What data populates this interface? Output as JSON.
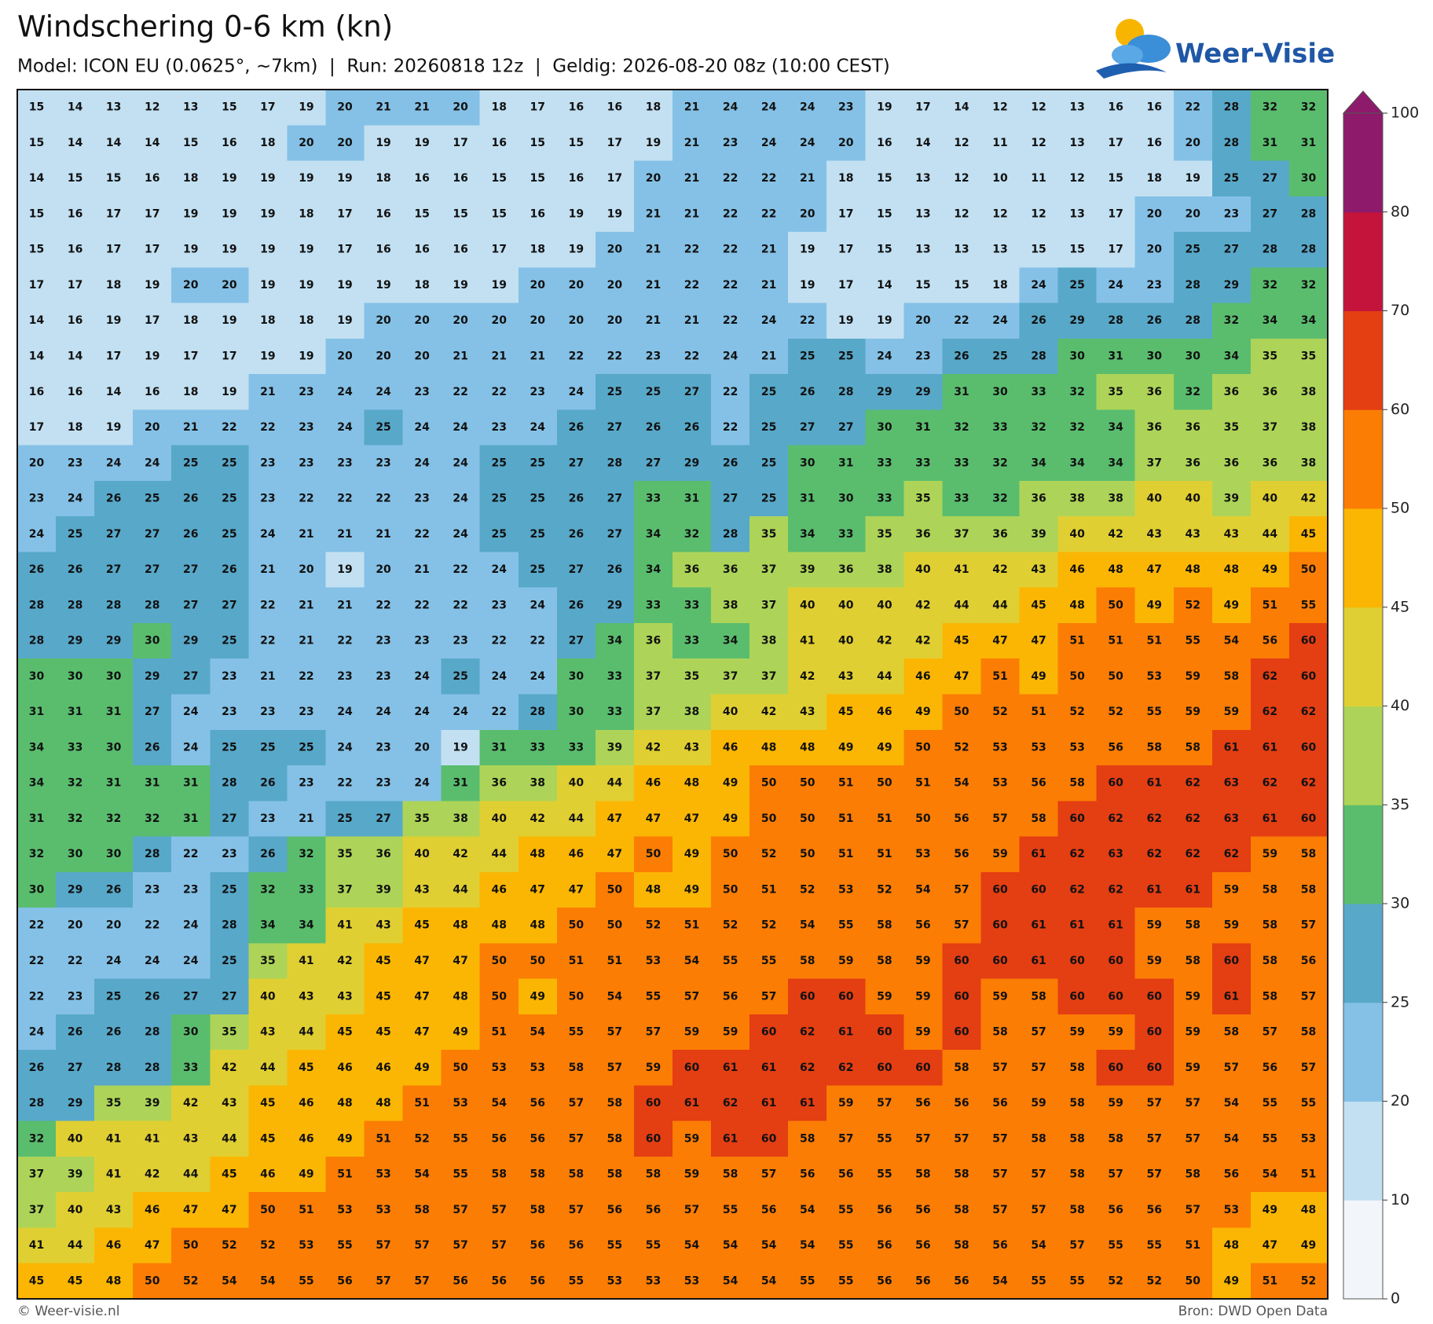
{
  "header": {
    "title": "Windschering 0-6 km (kn)",
    "subtitle": "Model: ICON EU (0.0625°, ~7km)  |  Run: 20260818 12z  |  Geldig: 2026-08-20 08z (10:00 CEST)"
  },
  "logo": {
    "text": "Weer-Visie"
  },
  "map": {
    "grid": [
      [
        15,
        14,
        13,
        12,
        13,
        15,
        17,
        19,
        20,
        21,
        21,
        20,
        18,
        17,
        16,
        16,
        18,
        21,
        24,
        24,
        24,
        23,
        19,
        17,
        14,
        12,
        12,
        13,
        16,
        16,
        22,
        28,
        32,
        32
      ],
      [
        15,
        14,
        14,
        14,
        15,
        16,
        18,
        20,
        20,
        19,
        19,
        17,
        16,
        15,
        15,
        17,
        19,
        21,
        23,
        24,
        24,
        20,
        16,
        14,
        12,
        11,
        12,
        13,
        17,
        16,
        20,
        28,
        31,
        31
      ],
      [
        14,
        15,
        15,
        16,
        18,
        19,
        19,
        19,
        19,
        18,
        16,
        16,
        15,
        15,
        16,
        17,
        20,
        21,
        22,
        22,
        21,
        18,
        15,
        13,
        12,
        10,
        11,
        12,
        15,
        18,
        19,
        25,
        27,
        30
      ],
      [
        15,
        16,
        17,
        17,
        19,
        19,
        19,
        18,
        17,
        16,
        15,
        15,
        15,
        16,
        19,
        19,
        21,
        21,
        22,
        22,
        20,
        17,
        15,
        13,
        12,
        12,
        12,
        13,
        17,
        20,
        20,
        23,
        27,
        28
      ],
      [
        15,
        16,
        17,
        17,
        19,
        19,
        19,
        19,
        17,
        16,
        16,
        16,
        17,
        18,
        19,
        20,
        21,
        22,
        22,
        21,
        19,
        17,
        15,
        13,
        13,
        13,
        15,
        15,
        17,
        20,
        25,
        27,
        28,
        28
      ],
      [
        17,
        17,
        18,
        19,
        20,
        20,
        19,
        19,
        19,
        19,
        18,
        19,
        19,
        20,
        20,
        20,
        21,
        22,
        22,
        21,
        19,
        17,
        14,
        15,
        15,
        18,
        24,
        25,
        24,
        23,
        28,
        29,
        32,
        32
      ],
      [
        14,
        16,
        19,
        17,
        18,
        19,
        18,
        18,
        19,
        20,
        20,
        20,
        20,
        20,
        20,
        20,
        21,
        21,
        22,
        24,
        22,
        19,
        19,
        20,
        22,
        24,
        26,
        29,
        28,
        26,
        28,
        32,
        34,
        34
      ],
      [
        14,
        14,
        17,
        19,
        17,
        17,
        19,
        19,
        20,
        20,
        20,
        21,
        21,
        21,
        22,
        22,
        23,
        22,
        24,
        21,
        25,
        25,
        24,
        23,
        26,
        25,
        28,
        30,
        31,
        30,
        30,
        34,
        35,
        35
      ],
      [
        16,
        16,
        14,
        16,
        18,
        19,
        21,
        23,
        24,
        24,
        23,
        22,
        22,
        23,
        24,
        25,
        25,
        27,
        22,
        25,
        26,
        28,
        29,
        29,
        31,
        30,
        33,
        32,
        35,
        36,
        32,
        36,
        36,
        38
      ],
      [
        17,
        18,
        19,
        20,
        21,
        22,
        22,
        23,
        24,
        25,
        24,
        24,
        23,
        24,
        26,
        27,
        26,
        26,
        22,
        25,
        27,
        27,
        30,
        31,
        32,
        33,
        32,
        32,
        34,
        36,
        36,
        35,
        37,
        38
      ],
      [
        20,
        23,
        24,
        24,
        25,
        25,
        23,
        23,
        23,
        23,
        24,
        24,
        25,
        25,
        27,
        28,
        27,
        29,
        26,
        25,
        30,
        31,
        33,
        33,
        33,
        32,
        34,
        34,
        34,
        37,
        36,
        36,
        36,
        38
      ],
      [
        23,
        24,
        26,
        25,
        26,
        25,
        23,
        22,
        22,
        22,
        23,
        24,
        25,
        25,
        26,
        27,
        33,
        31,
        27,
        25,
        31,
        30,
        33,
        35,
        33,
        32,
        36,
        38,
        38,
        40,
        40,
        39,
        40,
        42
      ],
      [
        24,
        25,
        27,
        27,
        26,
        25,
        24,
        21,
        21,
        21,
        22,
        24,
        25,
        25,
        26,
        27,
        34,
        32,
        28,
        35,
        34,
        33,
        35,
        36,
        37,
        36,
        39,
        40,
        42,
        43,
        43,
        43,
        44,
        45
      ],
      [
        26,
        26,
        27,
        27,
        27,
        26,
        21,
        20,
        19,
        20,
        21,
        22,
        24,
        25,
        27,
        26,
        34,
        36,
        36,
        37,
        39,
        36,
        38,
        40,
        41,
        42,
        43,
        46,
        48,
        47,
        48,
        48,
        49,
        50
      ],
      [
        28,
        28,
        28,
        28,
        27,
        27,
        22,
        21,
        21,
        22,
        22,
        22,
        23,
        24,
        26,
        29,
        33,
        33,
        38,
        37,
        40,
        40,
        40,
        42,
        44,
        44,
        45,
        48,
        50,
        49,
        52,
        49,
        51,
        55
      ],
      [
        28,
        29,
        29,
        30,
        29,
        25,
        22,
        21,
        22,
        23,
        23,
        23,
        22,
        22,
        27,
        34,
        36,
        33,
        34,
        38,
        41,
        40,
        42,
        42,
        45,
        47,
        47,
        51,
        51,
        51,
        55,
        54,
        56,
        60
      ],
      [
        30,
        30,
        30,
        29,
        27,
        23,
        21,
        22,
        23,
        23,
        24,
        25,
        24,
        24,
        30,
        33,
        37,
        35,
        37,
        37,
        42,
        43,
        44,
        46,
        47,
        51,
        49,
        50,
        50,
        53,
        59,
        58,
        62,
        60
      ],
      [
        31,
        31,
        31,
        27,
        24,
        23,
        23,
        23,
        24,
        24,
        24,
        24,
        22,
        28,
        30,
        33,
        37,
        38,
        40,
        42,
        43,
        45,
        46,
        49,
        50,
        52,
        51,
        52,
        52,
        55,
        59,
        59,
        62,
        62
      ],
      [
        34,
        33,
        30,
        26,
        24,
        25,
        25,
        25,
        24,
        23,
        20,
        19,
        31,
        33,
        33,
        39,
        42,
        43,
        46,
        48,
        48,
        49,
        49,
        50,
        52,
        53,
        53,
        53,
        56,
        58,
        58,
        61,
        61,
        60
      ],
      [
        34,
        32,
        31,
        31,
        31,
        28,
        26,
        23,
        22,
        23,
        24,
        31,
        36,
        38,
        40,
        44,
        46,
        48,
        49,
        50,
        50,
        51,
        50,
        51,
        54,
        53,
        56,
        58,
        60,
        61,
        62,
        63,
        62,
        62
      ],
      [
        31,
        32,
        32,
        32,
        31,
        27,
        23,
        21,
        25,
        27,
        35,
        38,
        40,
        42,
        44,
        47,
        47,
        47,
        49,
        50,
        50,
        51,
        51,
        50,
        56,
        57,
        58,
        60,
        62,
        62,
        62,
        63,
        61,
        60
      ],
      [
        32,
        30,
        30,
        28,
        22,
        23,
        26,
        32,
        35,
        36,
        40,
        42,
        44,
        48,
        46,
        47,
        50,
        49,
        50,
        52,
        50,
        51,
        51,
        53,
        56,
        59,
        61,
        62,
        63,
        62,
        62,
        62,
        59,
        58
      ],
      [
        30,
        29,
        26,
        23,
        23,
        25,
        32,
        33,
        37,
        39,
        43,
        44,
        46,
        47,
        47,
        50,
        48,
        49,
        50,
        51,
        52,
        53,
        52,
        54,
        57,
        60,
        60,
        62,
        62,
        61,
        61,
        59,
        58,
        58
      ],
      [
        22,
        20,
        20,
        22,
        24,
        28,
        34,
        34,
        41,
        43,
        45,
        48,
        48,
        48,
        50,
        50,
        52,
        51,
        52,
        52,
        54,
        55,
        58,
        56,
        57,
        60,
        61,
        61,
        61,
        59,
        58,
        59,
        58,
        57
      ],
      [
        22,
        22,
        24,
        24,
        24,
        25,
        35,
        41,
        42,
        45,
        47,
        47,
        50,
        50,
        51,
        51,
        53,
        54,
        55,
        55,
        58,
        59,
        58,
        59,
        60,
        60,
        61,
        60,
        60,
        59,
        58,
        60,
        58,
        56
      ],
      [
        22,
        23,
        25,
        26,
        27,
        27,
        40,
        43,
        43,
        45,
        47,
        48,
        50,
        49,
        50,
        54,
        55,
        57,
        56,
        57,
        60,
        60,
        59,
        59,
        60,
        59,
        58,
        60,
        60,
        60,
        59,
        61,
        58,
        57
      ],
      [
        24,
        26,
        26,
        28,
        30,
        35,
        43,
        44,
        45,
        45,
        47,
        49,
        51,
        54,
        55,
        57,
        57,
        59,
        59,
        60,
        62,
        61,
        60,
        59,
        60,
        58,
        57,
        59,
        59,
        60,
        59,
        58,
        57,
        58
      ],
      [
        26,
        27,
        28,
        28,
        33,
        42,
        44,
        45,
        46,
        46,
        49,
        50,
        53,
        53,
        58,
        57,
        59,
        60,
        61,
        61,
        62,
        62,
        60,
        60,
        58,
        57,
        57,
        58,
        60,
        60,
        59,
        57,
        56,
        57
      ],
      [
        28,
        29,
        35,
        39,
        42,
        43,
        45,
        46,
        48,
        48,
        51,
        53,
        54,
        56,
        57,
        58,
        60,
        61,
        62,
        61,
        61,
        59,
        57,
        56,
        56,
        56,
        59,
        58,
        59,
        57,
        57,
        54,
        55,
        55
      ],
      [
        32,
        40,
        41,
        41,
        43,
        44,
        45,
        46,
        49,
        51,
        52,
        55,
        56,
        56,
        57,
        58,
        60,
        59,
        61,
        60,
        58,
        57,
        55,
        57,
        57,
        57,
        58,
        58,
        58,
        57,
        57,
        54,
        55,
        53
      ],
      [
        37,
        39,
        41,
        42,
        44,
        45,
        46,
        49,
        51,
        53,
        54,
        55,
        58,
        58,
        58,
        58,
        58,
        59,
        58,
        57,
        56,
        56,
        55,
        58,
        58,
        57,
        57,
        58,
        57,
        57,
        58,
        56,
        54,
        51
      ],
      [
        37,
        40,
        43,
        46,
        47,
        47,
        50,
        51,
        53,
        53,
        58,
        57,
        57,
        58,
        57,
        56,
        56,
        57,
        55,
        56,
        54,
        55,
        56,
        56,
        58,
        57,
        57,
        58,
        56,
        56,
        57,
        53,
        49,
        48
      ],
      [
        41,
        44,
        46,
        47,
        50,
        52,
        52,
        53,
        55,
        57,
        57,
        57,
        57,
        56,
        56,
        55,
        55,
        54,
        54,
        54,
        54,
        55,
        56,
        56,
        58,
        56,
        54,
        57,
        55,
        55,
        51,
        48,
        47,
        49
      ],
      [
        45,
        45,
        48,
        50,
        52,
        54,
        54,
        55,
        56,
        57,
        57,
        56,
        56,
        56,
        55,
        53,
        53,
        53,
        54,
        54,
        55,
        55,
        56,
        56,
        56,
        54,
        55,
        55,
        52,
        52,
        50,
        49,
        51,
        52
      ]
    ]
  },
  "colorbar": {
    "ticks": [
      0,
      10,
      20,
      25,
      30,
      35,
      40,
      45,
      50,
      60,
      70,
      80,
      100
    ],
    "colors": [
      "#f2f6fa",
      "#c2e0f2",
      "#85c1e6",
      "#58a8c9",
      "#5abd6e",
      "#add458",
      "#e0cf32",
      "#fbb603",
      "#fb7d04",
      "#e43e13",
      "#c4143c",
      "#8d1a6b"
    ]
  },
  "footer": {
    "left": "© Weer-visie.nl",
    "right": "Bron: DWD Open Data"
  }
}
